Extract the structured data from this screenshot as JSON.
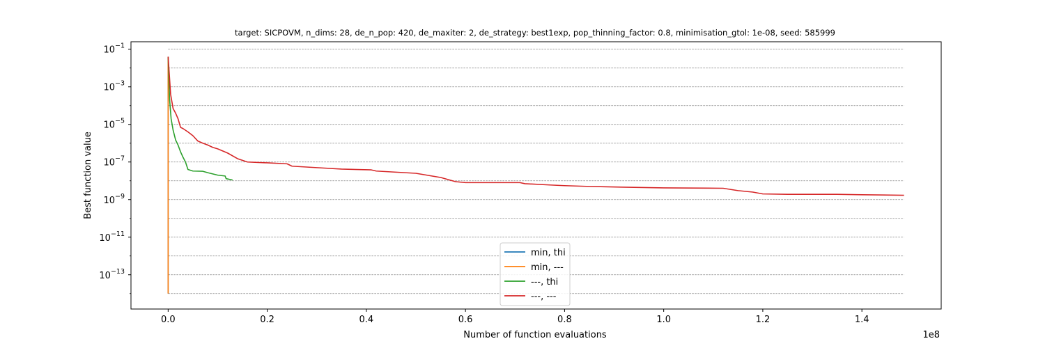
{
  "chart_data": {
    "type": "line",
    "title": "target: SICPOVM, n_dims: 28, de_n_pop: 420, de_maxiter: 2, de_strategy: best1exp, pop_thinning_factor: 0.8, minimisation_gtol: 1e-08, seed: 585999",
    "xlabel": "Number of function evaluations",
    "ylabel": "Best function value",
    "x_offset_text": "1e8",
    "xlim": [
      -7500000,
      156000000
    ],
    "ylim": [
      1.5e-15,
      0.25
    ],
    "yscale": "log",
    "x_ticks": [
      0,
      20000000,
      40000000,
      60000000,
      80000000,
      100000000,
      120000000,
      140000000
    ],
    "x_tick_labels": [
      "0.0",
      "0.2",
      "0.4",
      "0.6",
      "0.8",
      "1.0",
      "1.2",
      "1.4"
    ],
    "y_ticks": [
      1e-14,
      1e-12,
      1e-10,
      1e-08,
      1e-06,
      0.0001,
      0.01
    ],
    "y_tick_labels": [
      {
        "base": "10",
        "exp": "−13"
      },
      {
        "base": "10",
        "exp": "−11"
      },
      {
        "base": "10",
        "exp": "−9"
      },
      {
        "base": "10",
        "exp": "−7"
      },
      {
        "base": "10",
        "exp": "−5"
      },
      {
        "base": "10",
        "exp": "−3"
      },
      {
        "base": "10",
        "exp": "−1"
      }
    ],
    "y_tick_values": [
      1e-13,
      1e-11,
      1e-09,
      1e-07,
      1e-05,
      0.001,
      0.1
    ],
    "hlines": [
      1e-14,
      1e-13,
      1e-12,
      1e-11,
      1e-10,
      1e-09,
      1e-08,
      1e-07,
      1e-06,
      1e-05,
      0.0001,
      0.001,
      0.01,
      0.1
    ],
    "hline_xrange": [
      0,
      148500000
    ],
    "legend_position": "lower center",
    "series": [
      {
        "name": "min, thi",
        "color": "#1f77b4",
        "x": [
          0,
          0
        ],
        "y": [
          0.04,
          1e-14
        ]
      },
      {
        "name": "min, ---",
        "color": "#ff7f0e",
        "x": [
          0,
          0
        ],
        "y": [
          0.04,
          1e-14
        ]
      },
      {
        "name": "---, thi",
        "color": "#2ca02c",
        "x": [
          0,
          300000,
          600000,
          1000000,
          1500000,
          2000000,
          2500000,
          3000000,
          3500000,
          4000000,
          5000000,
          7000000,
          8000000,
          10000000,
          11500000,
          11700000,
          13000000
        ],
        "y": [
          0.04,
          0.0002,
          2e-05,
          5e-06,
          1.5e-06,
          8e-07,
          3.5e-07,
          1.8e-07,
          1e-07,
          4e-08,
          3.3e-08,
          3.2e-08,
          2.7e-08,
          2e-08,
          1.8e-08,
          1.3e-08,
          1.1e-08
        ]
      },
      {
        "name": "---, ---",
        "color": "#d62728",
        "x": [
          0,
          500000,
          1000000,
          1500000,
          2000000,
          2500000,
          3000000,
          4000000,
          5000000,
          6000000,
          7000000,
          8000000,
          9000000,
          10000000,
          12000000,
          14000000,
          16000000,
          20000000,
          24000000,
          25000000,
          30000000,
          35000000,
          41000000,
          42000000,
          50000000,
          55000000,
          58000000,
          60000000,
          65000000,
          71000000,
          72000000,
          77000000,
          80000000,
          85000000,
          88000000,
          93000000,
          100000000,
          112000000,
          115000000,
          118000000,
          120000000,
          125000000,
          135000000,
          140000000,
          148500000
        ],
        "y": [
          0.04,
          0.0004,
          7e-05,
          4e-05,
          2e-05,
          7e-06,
          6e-06,
          4e-06,
          2.5e-06,
          1.3e-06,
          1e-06,
          8e-07,
          6e-07,
          5e-07,
          3e-07,
          1.5e-07,
          1e-07,
          9e-08,
          8e-08,
          6e-08,
          5e-08,
          4.2e-08,
          3.8e-08,
          3.3e-08,
          2.5e-08,
          1.5e-08,
          9e-09,
          8e-09,
          8e-09,
          8e-09,
          7e-09,
          6e-09,
          5.5e-09,
          5e-09,
          4.8e-09,
          4.5e-09,
          4.2e-09,
          4e-09,
          3e-09,
          2.5e-09,
          2e-09,
          1.9e-09,
          1.9e-09,
          1.8e-09,
          1.7e-09
        ]
      }
    ]
  }
}
